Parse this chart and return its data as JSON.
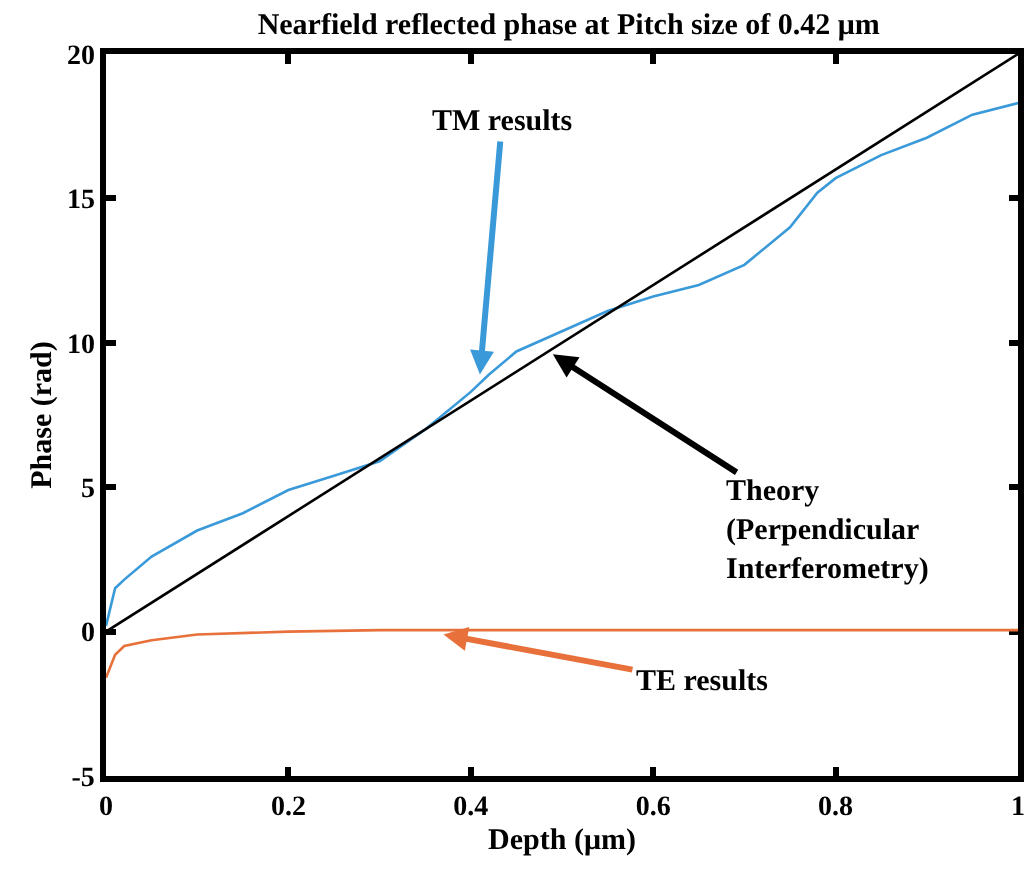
{
  "chart_data": {
    "type": "line",
    "title": "Nearfield reflected phase at Pitch size of 0.42 μm",
    "xlabel": "Depth (μm)",
    "ylabel": "Phase (rad)",
    "series": [
      {
        "color": "#3a9ad9",
        "x": [
          0,
          0.01,
          0.02,
          0.05,
          0.1,
          0.15,
          0.2,
          0.25,
          0.3,
          0.35,
          0.4,
          0.42,
          0.45,
          0.5,
          0.55,
          0.6,
          0.65,
          0.7,
          0.75,
          0.78,
          0.8,
          0.85,
          0.9,
          0.95,
          1.0
        ],
        "values": [
          0.2,
          1.5,
          1.8,
          2.6,
          3.5,
          4.1,
          4.9,
          5.4,
          5.9,
          7.0,
          8.3,
          8.9,
          9.7,
          10.4,
          11.1,
          11.6,
          12.0,
          12.7,
          14.0,
          15.2,
          15.7,
          16.5,
          17.1,
          17.9,
          18.3
        ]
      },
      {
        "color": "#000000",
        "x": [
          0,
          1
        ],
        "values": [
          0,
          20
        ]
      },
      {
        "color": "#e8703a",
        "x": [
          0,
          0.01,
          0.02,
          0.05,
          0.1,
          0.2,
          0.3,
          0.5,
          0.7,
          1.0
        ],
        "values": [
          -1.6,
          -0.8,
          -0.5,
          -0.3,
          -0.1,
          0,
          0.05,
          0.05,
          0.05,
          0.05
        ]
      }
    ],
    "annotations": [
      {
        "text": "TM results",
        "x": 0.41,
        "y": 8.9
      },
      {
        "text": "Theory\n(Perpendicular\nInterferometry)",
        "x": 0.49,
        "y": 9.6
      },
      {
        "text": "TE results",
        "x": 0.37,
        "y": -0.1
      }
    ],
    "xlim": [
      0,
      1
    ],
    "xticks": [
      0,
      0.2,
      0.4,
      0.6,
      0.8,
      1
    ],
    "ylim": [
      -5,
      20
    ],
    "yticks": [
      -5,
      0,
      5,
      10,
      15,
      20
    ],
    "marker": "none",
    "line_style": "solid"
  }
}
